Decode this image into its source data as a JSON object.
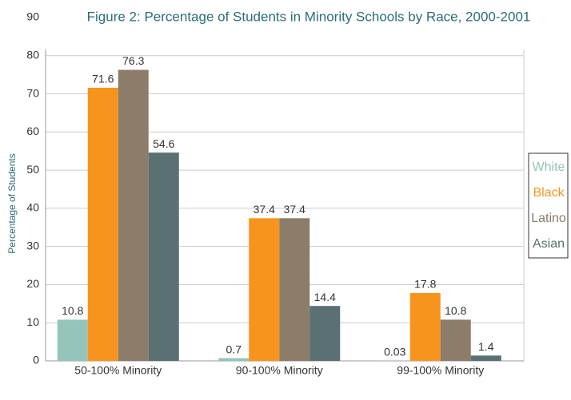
{
  "chart_data": {
    "type": "bar",
    "title": "Figure 2: Percentage of Students in Minority Schools by Race, 2000-2001",
    "y_label": "Percentage of Students",
    "categories": [
      "50-100% Minority",
      "90-100% Minority",
      "99-100% Minority"
    ],
    "series": [
      {
        "name": "White",
        "color": "#95c4ba",
        "values": [
          10.8,
          0.7,
          0.03
        ]
      },
      {
        "name": "Black",
        "color": "#f7941d",
        "values": [
          71.6,
          37.4,
          17.8
        ]
      },
      {
        "name": "Latino",
        "color": "#8b7d69",
        "values": [
          76.3,
          37.4,
          10.8
        ]
      },
      {
        "name": "Asian",
        "color": "#5a7073",
        "values": [
          54.6,
          14.4,
          1.4
        ]
      }
    ],
    "ylim": [
      0,
      90
    ],
    "yticks": [
      0,
      10,
      20,
      30,
      40,
      50,
      60,
      70,
      80,
      90
    ],
    "grid": true,
    "legend": "right"
  }
}
